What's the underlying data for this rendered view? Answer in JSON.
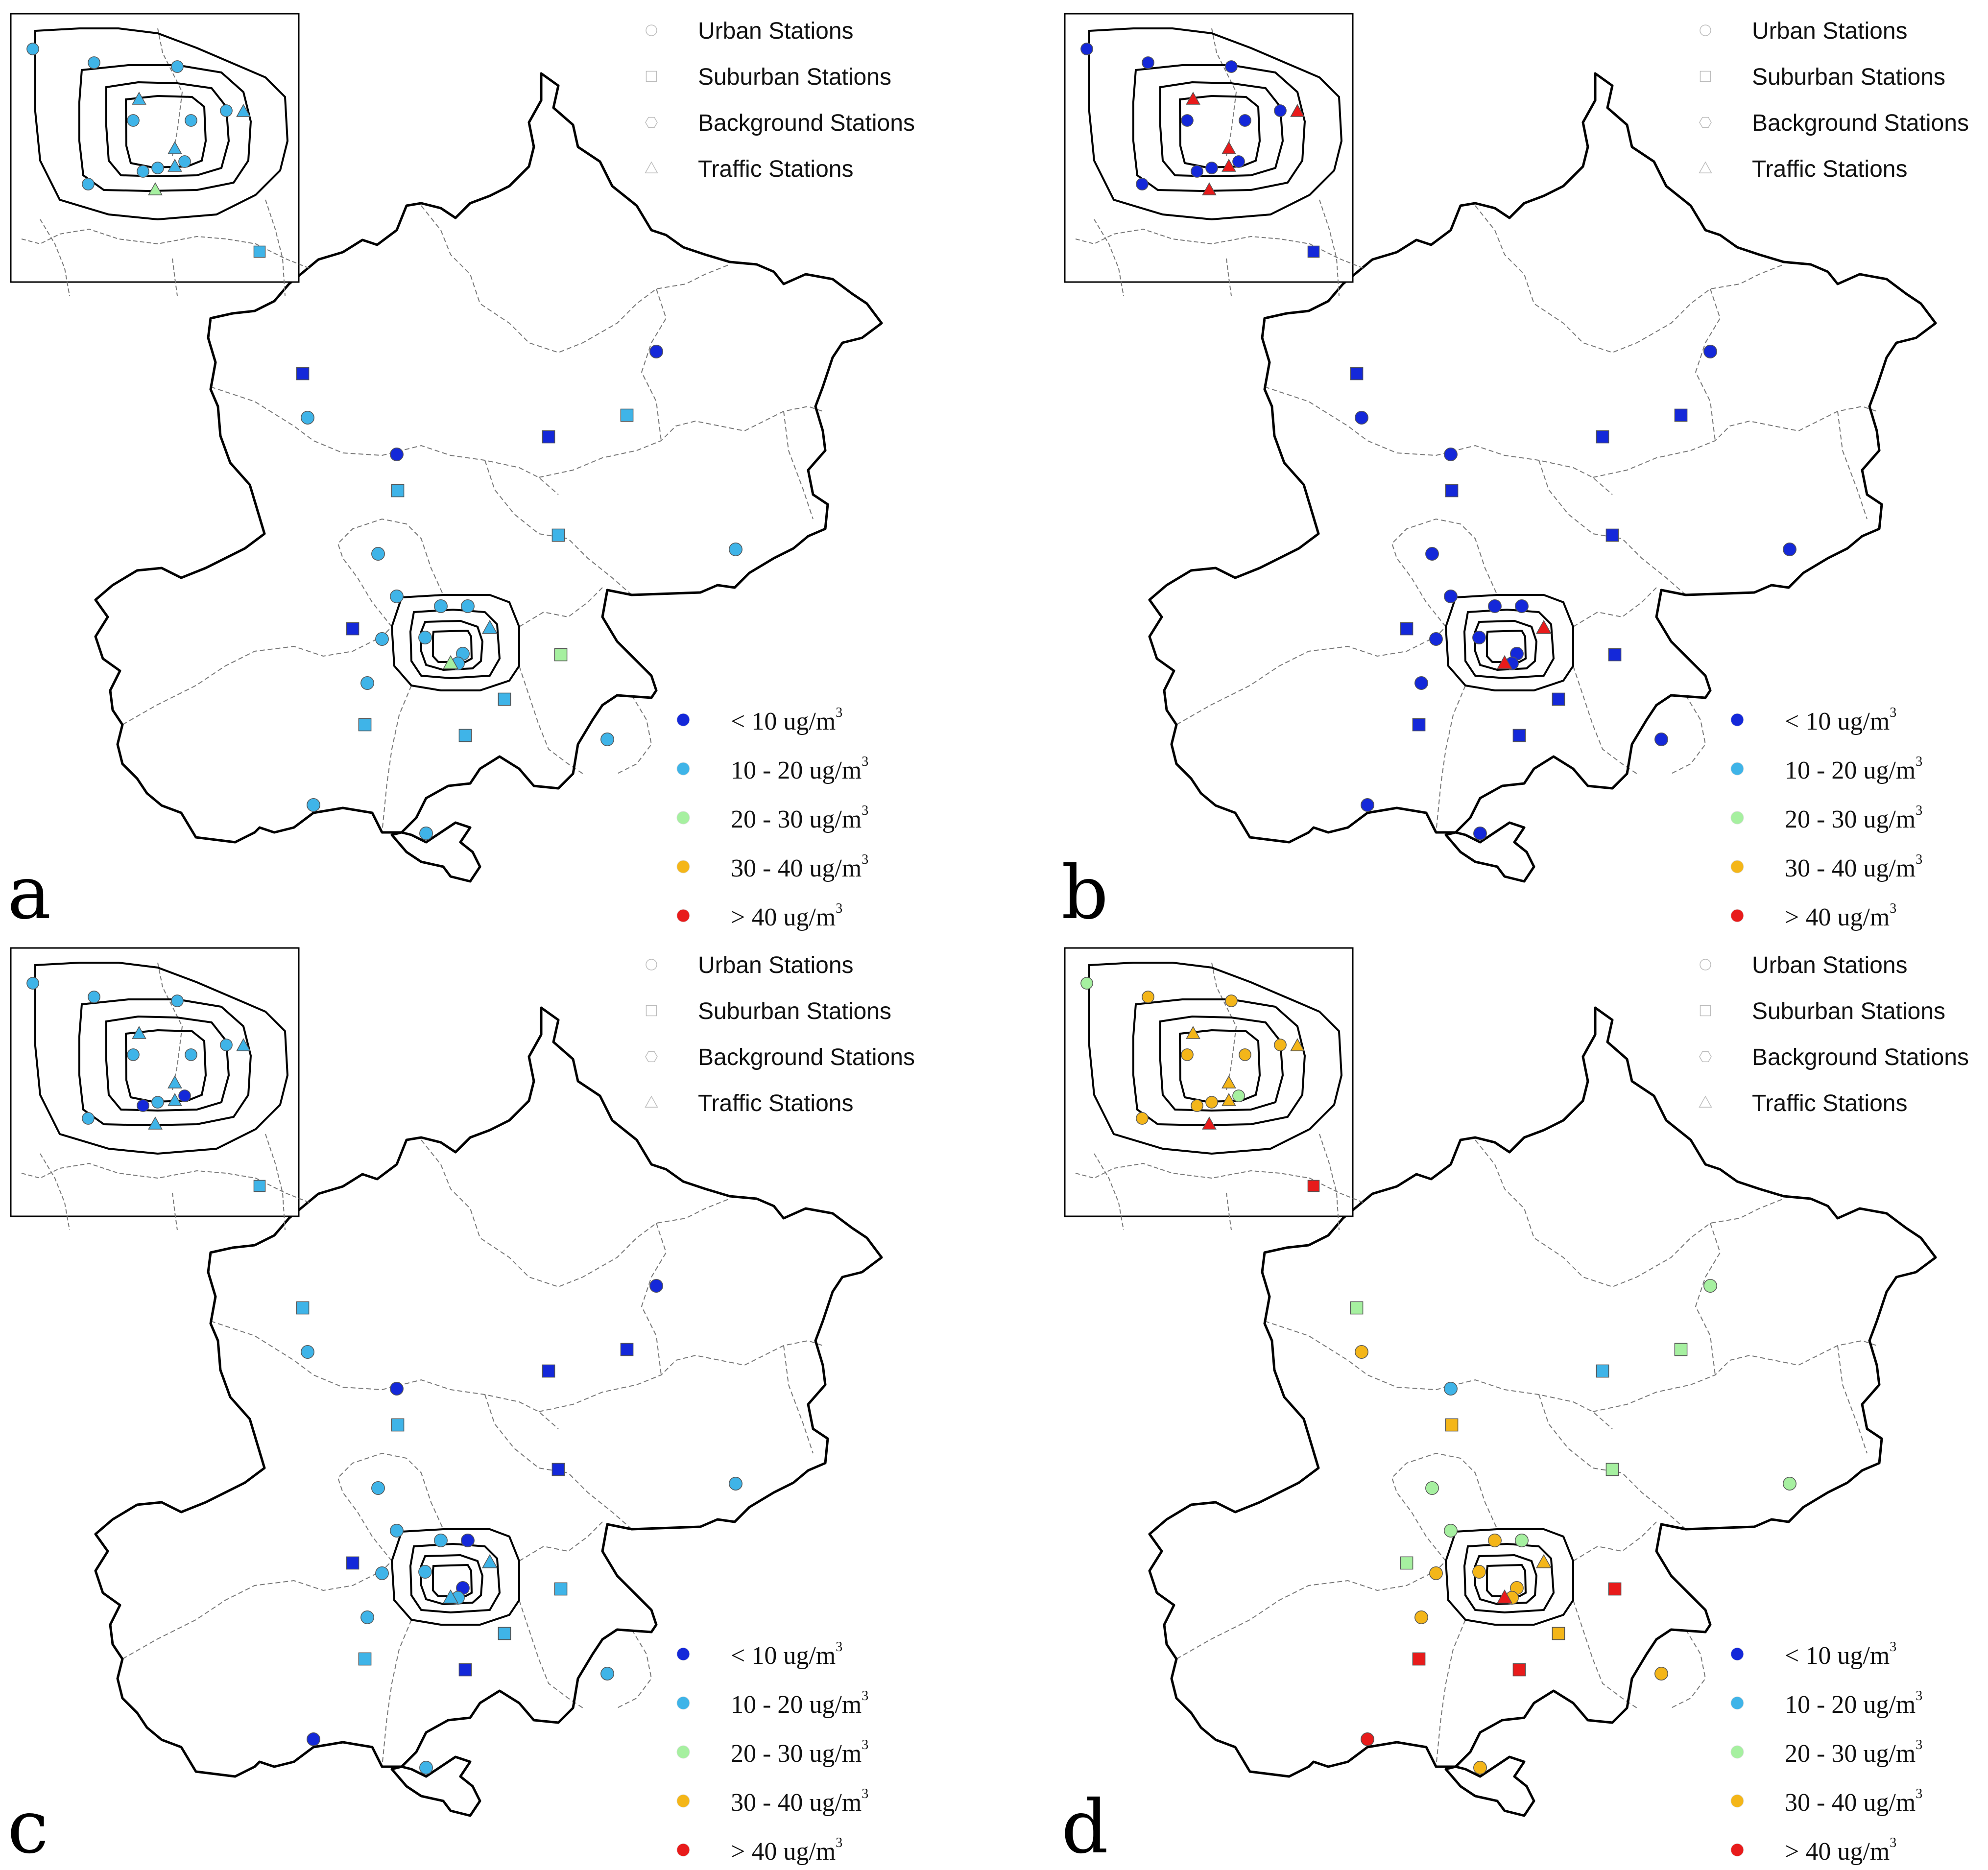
{
  "figure": {
    "type_legend": [
      {
        "label": "Urban Stations",
        "symbol": "circle"
      },
      {
        "label": "Suburban Stations",
        "symbol": "square"
      },
      {
        "label": "Background Stations",
        "symbol": "hexagon"
      },
      {
        "label": "Traffic Stations",
        "symbol": "triangle"
      }
    ],
    "concentration_legend": [
      {
        "label": "< 10 ug/m",
        "sup": "3",
        "color": "#1428d9"
      },
      {
        "label": "10 - 20 ug/m",
        "sup": "3",
        "color": "#3fb4e8"
      },
      {
        "label": "20 - 30 ug/m",
        "sup": "3",
        "color": "#a6f0a0"
      },
      {
        "label": "30 - 40 ug/m",
        "sup": "3",
        "color": "#f4b619"
      },
      {
        "label": "> 40 ug/m",
        "sup": "3",
        "color": "#e81b1b"
      }
    ],
    "class_colors": [
      "#1428d9",
      "#3fb4e8",
      "#a6f0a0",
      "#f4b619",
      "#e81b1b"
    ],
    "panels": [
      {
        "letter": "a",
        "main_stations": [
          {
            "type": "square",
            "c": 0
          },
          {
            "type": "circle",
            "c": 1
          },
          {
            "type": "circle",
            "c": 0
          },
          {
            "type": "square",
            "c": 0
          },
          {
            "type": "square",
            "c": 1
          },
          {
            "type": "circle",
            "c": 0
          },
          {
            "type": "square",
            "c": 1
          },
          {
            "type": "square",
            "c": 1
          },
          {
            "type": "circle",
            "c": 1
          },
          {
            "type": "circle",
            "c": 1
          },
          {
            "type": "circle",
            "c": 1
          },
          {
            "type": "square",
            "c": 0
          },
          {
            "type": "circle",
            "c": 1
          },
          {
            "type": "circle",
            "c": 1
          },
          {
            "type": "square",
            "c": 2
          },
          {
            "type": "square",
            "c": 1
          },
          {
            "type": "square",
            "c": 1
          },
          {
            "type": "square",
            "c": 1
          },
          {
            "type": "circle",
            "c": 1
          },
          {
            "type": "circle",
            "c": 1
          },
          {
            "type": "circle",
            "c": 1
          },
          {
            "type": "circle",
            "c": 1
          },
          {
            "type": "circle",
            "c": 1
          },
          {
            "type": "circle",
            "c": 1
          },
          {
            "type": "triangle",
            "c": 1
          },
          {
            "type": "circle",
            "c": 1
          },
          {
            "type": "circle",
            "c": 1
          },
          {
            "type": "triangle",
            "c": 2
          }
        ],
        "inset_stations": [
          {
            "type": "circle",
            "c": 1
          },
          {
            "type": "circle",
            "c": 1
          },
          {
            "type": "circle",
            "c": 1
          },
          {
            "type": "triangle",
            "c": 1
          },
          {
            "type": "circle",
            "c": 1
          },
          {
            "type": "circle",
            "c": 1
          },
          {
            "type": "circle",
            "c": 1
          },
          {
            "type": "triangle",
            "c": 1
          },
          {
            "type": "circle",
            "c": 1
          },
          {
            "type": "circle",
            "c": 1
          },
          {
            "type": "triangle",
            "c": 1
          },
          {
            "type": "circle",
            "c": 1
          },
          {
            "type": "circle",
            "c": 1
          },
          {
            "type": "triangle",
            "c": 1
          },
          {
            "type": "triangle",
            "c": 2
          },
          {
            "type": "square",
            "c": 1
          }
        ]
      },
      {
        "letter": "b",
        "main_stations": [
          {
            "type": "square",
            "c": 0
          },
          {
            "type": "circle",
            "c": 0
          },
          {
            "type": "circle",
            "c": 0
          },
          {
            "type": "square",
            "c": 0
          },
          {
            "type": "square",
            "c": 0
          },
          {
            "type": "circle",
            "c": 0
          },
          {
            "type": "square",
            "c": 0
          },
          {
            "type": "square",
            "c": 0
          },
          {
            "type": "circle",
            "c": 0
          },
          {
            "type": "circle",
            "c": 0
          },
          {
            "type": "circle",
            "c": 0
          },
          {
            "type": "square",
            "c": 0
          },
          {
            "type": "circle",
            "c": 0
          },
          {
            "type": "circle",
            "c": 0
          },
          {
            "type": "square",
            "c": 0
          },
          {
            "type": "square",
            "c": 0
          },
          {
            "type": "square",
            "c": 0
          },
          {
            "type": "square",
            "c": 0
          },
          {
            "type": "circle",
            "c": 0
          },
          {
            "type": "circle",
            "c": 0
          },
          {
            "type": "circle",
            "c": 0
          },
          {
            "type": "circle",
            "c": 0
          },
          {
            "type": "circle",
            "c": 0
          },
          {
            "type": "circle",
            "c": 0
          },
          {
            "type": "triangle",
            "c": 4
          },
          {
            "type": "circle",
            "c": 0
          },
          {
            "type": "circle",
            "c": 0
          },
          {
            "type": "triangle",
            "c": 4
          }
        ],
        "inset_stations": [
          {
            "type": "circle",
            "c": 0
          },
          {
            "type": "circle",
            "c": 0
          },
          {
            "type": "circle",
            "c": 0
          },
          {
            "type": "triangle",
            "c": 4
          },
          {
            "type": "circle",
            "c": 0
          },
          {
            "type": "circle",
            "c": 0
          },
          {
            "type": "circle",
            "c": 0
          },
          {
            "type": "triangle",
            "c": 4
          },
          {
            "type": "circle",
            "c": 0
          },
          {
            "type": "circle",
            "c": 0
          },
          {
            "type": "triangle",
            "c": 4
          },
          {
            "type": "circle",
            "c": 0
          },
          {
            "type": "circle",
            "c": 0
          },
          {
            "type": "triangle",
            "c": 4
          },
          {
            "type": "triangle",
            "c": 4
          },
          {
            "type": "square",
            "c": 0
          }
        ]
      },
      {
        "letter": "c",
        "main_stations": [
          {
            "type": "square",
            "c": 1
          },
          {
            "type": "circle",
            "c": 1
          },
          {
            "type": "circle",
            "c": 0
          },
          {
            "type": "square",
            "c": 0
          },
          {
            "type": "square",
            "c": 0
          },
          {
            "type": "circle",
            "c": 0
          },
          {
            "type": "square",
            "c": 1
          },
          {
            "type": "square",
            "c": 0
          },
          {
            "type": "circle",
            "c": 1
          },
          {
            "type": "circle",
            "c": 1
          },
          {
            "type": "circle",
            "c": 1
          },
          {
            "type": "square",
            "c": 0
          },
          {
            "type": "circle",
            "c": 1
          },
          {
            "type": "circle",
            "c": 1
          },
          {
            "type": "square",
            "c": 1
          },
          {
            "type": "square",
            "c": 1
          },
          {
            "type": "square",
            "c": 1
          },
          {
            "type": "square",
            "c": 0
          },
          {
            "type": "circle",
            "c": 1
          },
          {
            "type": "circle",
            "c": 0
          },
          {
            "type": "circle",
            "c": 1
          },
          {
            "type": "circle",
            "c": 1
          },
          {
            "type": "circle",
            "c": 1
          },
          {
            "type": "circle",
            "c": 0
          },
          {
            "type": "triangle",
            "c": 1
          },
          {
            "type": "circle",
            "c": 0
          },
          {
            "type": "circle",
            "c": 1
          },
          {
            "type": "triangle",
            "c": 1
          }
        ],
        "inset_stations": [
          {
            "type": "circle",
            "c": 1
          },
          {
            "type": "circle",
            "c": 1
          },
          {
            "type": "circle",
            "c": 1
          },
          {
            "type": "triangle",
            "c": 1
          },
          {
            "type": "circle",
            "c": 1
          },
          {
            "type": "circle",
            "c": 1
          },
          {
            "type": "circle",
            "c": 1
          },
          {
            "type": "triangle",
            "c": 1
          },
          {
            "type": "circle",
            "c": 1
          },
          {
            "type": "circle",
            "c": 0
          },
          {
            "type": "triangle",
            "c": 1
          },
          {
            "type": "circle",
            "c": 0
          },
          {
            "type": "circle",
            "c": 1
          },
          {
            "type": "triangle",
            "c": 1
          },
          {
            "type": "triangle",
            "c": 1
          },
          {
            "type": "square",
            "c": 1
          }
        ]
      },
      {
        "letter": "d",
        "main_stations": [
          {
            "type": "square",
            "c": 2
          },
          {
            "type": "circle",
            "c": 3
          },
          {
            "type": "circle",
            "c": 1
          },
          {
            "type": "square",
            "c": 1
          },
          {
            "type": "square",
            "c": 2
          },
          {
            "type": "circle",
            "c": 2
          },
          {
            "type": "square",
            "c": 3
          },
          {
            "type": "square",
            "c": 2
          },
          {
            "type": "circle",
            "c": 2
          },
          {
            "type": "circle",
            "c": 2
          },
          {
            "type": "circle",
            "c": 2
          },
          {
            "type": "square",
            "c": 2
          },
          {
            "type": "circle",
            "c": 3
          },
          {
            "type": "circle",
            "c": 3
          },
          {
            "type": "square",
            "c": 4
          },
          {
            "type": "square",
            "c": 3
          },
          {
            "type": "square",
            "c": 4
          },
          {
            "type": "square",
            "c": 4
          },
          {
            "type": "circle",
            "c": 3
          },
          {
            "type": "circle",
            "c": 4
          },
          {
            "type": "circle",
            "c": 3
          },
          {
            "type": "circle",
            "c": 3
          },
          {
            "type": "circle",
            "c": 3
          },
          {
            "type": "circle",
            "c": 2
          },
          {
            "type": "triangle",
            "c": 3
          },
          {
            "type": "circle",
            "c": 3
          },
          {
            "type": "circle",
            "c": 3
          },
          {
            "type": "triangle",
            "c": 4
          }
        ],
        "inset_stations": [
          {
            "type": "circle",
            "c": 2
          },
          {
            "type": "circle",
            "c": 3
          },
          {
            "type": "circle",
            "c": 3
          },
          {
            "type": "triangle",
            "c": 3
          },
          {
            "type": "circle",
            "c": 3
          },
          {
            "type": "circle",
            "c": 3
          },
          {
            "type": "circle",
            "c": 3
          },
          {
            "type": "triangle",
            "c": 3
          },
          {
            "type": "circle",
            "c": 3
          },
          {
            "type": "circle",
            "c": 3
          },
          {
            "type": "triangle",
            "c": 3
          },
          {
            "type": "circle",
            "c": 2
          },
          {
            "type": "circle",
            "c": 3
          },
          {
            "type": "triangle",
            "c": 3
          },
          {
            "type": "triangle",
            "c": 4
          },
          {
            "type": "square",
            "c": 4
          }
        ]
      }
    ]
  }
}
